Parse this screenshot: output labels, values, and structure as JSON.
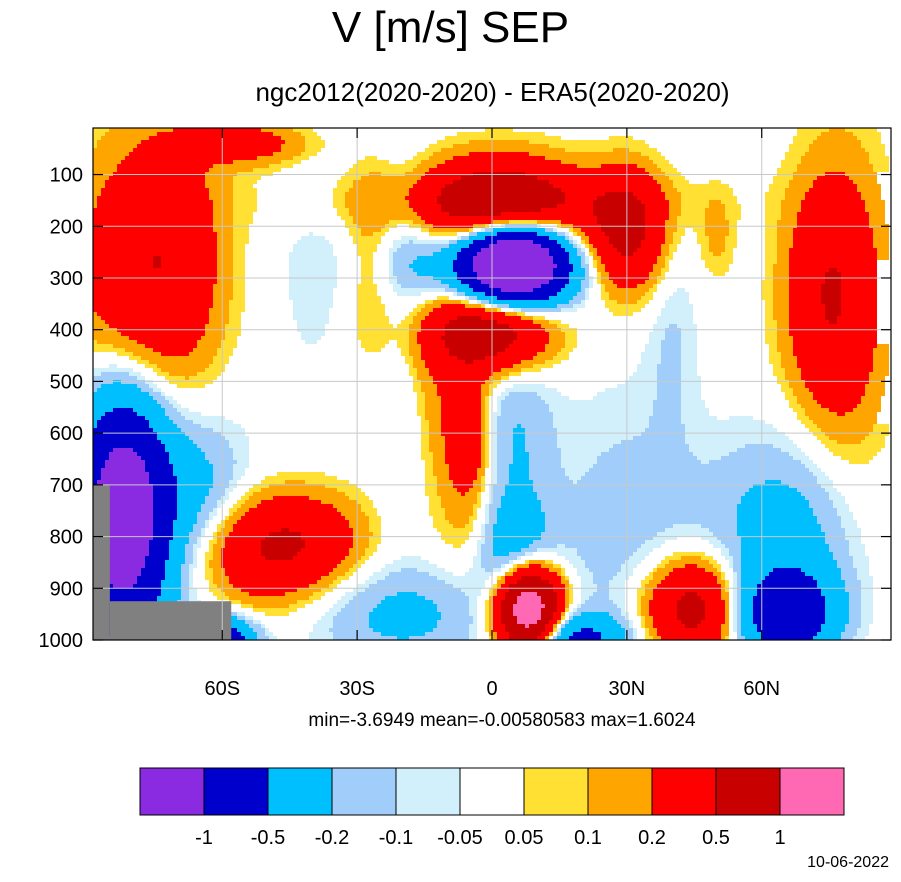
{
  "header": {
    "title": "V [m/s] SEP",
    "subtitle": "ngc2012(2020-2020) - ERA5(2020-2020)"
  },
  "stats": {
    "line": "min=-3.6949   mean=-0.00580583   max=1.6024"
  },
  "footer": {
    "date": "10-06-2022"
  },
  "chart_data": {
    "type": "heatmap",
    "title": "V [m/s] SEP",
    "subtitle": "ngc2012(2020-2020) - ERA5(2020-2020)",
    "xlabel": "",
    "ylabel": "",
    "x_ticks": [
      {
        "value": -60,
        "label": "60S"
      },
      {
        "value": -30,
        "label": "30S"
      },
      {
        "value": 0,
        "label": "0"
      },
      {
        "value": 30,
        "label": "30N"
      },
      {
        "value": 60,
        "label": "60N"
      }
    ],
    "xlim": [
      -88.75,
      88.75
    ],
    "y_ticks": [
      {
        "value": 100,
        "label": "100"
      },
      {
        "value": 200,
        "label": "200"
      },
      {
        "value": 300,
        "label": "300"
      },
      {
        "value": 400,
        "label": "400"
      },
      {
        "value": 500,
        "label": "500"
      },
      {
        "value": 600,
        "label": "600"
      },
      {
        "value": 700,
        "label": "700"
      },
      {
        "value": 800,
        "label": "800"
      },
      {
        "value": 900,
        "label": "900"
      },
      {
        "value": 1000,
        "label": "1000"
      }
    ],
    "ylim": [
      1000,
      10
    ],
    "grid": true,
    "stats": {
      "min": -3.6949,
      "mean": -0.00580583,
      "max": 1.6024
    },
    "colorbar": {
      "colors": [
        "#8a2be2",
        "#0000cd",
        "#00bfff",
        "#a0cdfa",
        "#d2f0fc",
        "#ffffff",
        "#ffe033",
        "#ffa500",
        "#ff0000",
        "#c80000",
        "#ff69b4"
      ],
      "labels": [
        "-1",
        "-0.5",
        "-0.2",
        "-0.1",
        "-0.05",
        "0.05",
        "0.1",
        "0.2",
        "0.5",
        "1"
      ]
    },
    "features": [
      {
        "lat": -80,
        "p": 300,
        "v": 0.35,
        "sl": 10,
        "sp": 180
      },
      {
        "lat": -70,
        "p": 260,
        "v": 0.25,
        "sl": 8,
        "sp": 160
      },
      {
        "lat": -52,
        "p": 830,
        "v": 0.45,
        "sl": 13,
        "sp": 75
      },
      {
        "lat": -42,
        "p": 800,
        "v": 0.2,
        "sl": 10,
        "sp": 60
      },
      {
        "lat": -27,
        "p": 280,
        "v": 0.15,
        "sl": 4,
        "sp": 120
      },
      {
        "lat": -10,
        "p": 500,
        "v": 0.18,
        "sl": 6,
        "sp": 180
      },
      {
        "lat": -5,
        "p": 600,
        "v": 0.35,
        "sl": 3,
        "sp": 70
      },
      {
        "lat": -5,
        "p": 780,
        "v": 0.12,
        "sl": 4,
        "sp": 110
      },
      {
        "lat": 0,
        "p": 400,
        "v": 0.8,
        "sl": 9,
        "sp": 55
      },
      {
        "lat": 2,
        "p": 170,
        "v": 0.9,
        "sl": 12,
        "sp": 65
      },
      {
        "lat": 0,
        "p": 150,
        "v": 0.15,
        "sl": 30,
        "sp": 40
      },
      {
        "lat": 30,
        "p": 210,
        "v": 0.6,
        "sl": 6,
        "sp": 80
      },
      {
        "lat": 8,
        "p": 940,
        "v": 1.6,
        "sl": 5,
        "sp": 60
      },
      {
        "lat": 45,
        "p": 940,
        "v": 0.7,
        "sl": 8,
        "sp": 70
      },
      {
        "lat": 50,
        "p": 220,
        "v": 0.12,
        "sl": 3,
        "sp": 60
      },
      {
        "lat": 75,
        "p": 330,
        "v": 0.45,
        "sl": 7,
        "sp": 160
      },
      {
        "lat": 80,
        "p": 450,
        "v": 0.1,
        "sl": 7,
        "sp": 350
      },
      {
        "lat": -55,
        "p": 40,
        "v": 0.3,
        "sl": 10,
        "sp": 30
      },
      {
        "lat": 5,
        "p": 270,
        "v": -2.0,
        "sl": 8,
        "sp": 55
      },
      {
        "lat": -5,
        "p": 270,
        "v": -0.3,
        "sl": 14,
        "sp": 60
      },
      {
        "lat": -18,
        "p": 200,
        "v": -0.12,
        "sl": 5,
        "sp": 90
      },
      {
        "lat": -40,
        "p": 300,
        "v": -0.07,
        "sl": 6,
        "sp": 160
      },
      {
        "lat": 5,
        "p": 600,
        "v": -0.2,
        "sl": 6,
        "sp": 130
      },
      {
        "lat": 5,
        "p": 850,
        "v": -0.4,
        "sl": 6,
        "sp": 80
      },
      {
        "lat": -20,
        "p": 950,
        "v": -0.25,
        "sl": 15,
        "sp": 70
      },
      {
        "lat": 30,
        "p": 800,
        "v": -0.15,
        "sl": 12,
        "sp": 200
      },
      {
        "lat": 65,
        "p": 950,
        "v": -0.8,
        "sl": 8,
        "sp": 60
      },
      {
        "lat": 65,
        "p": 800,
        "v": -0.3,
        "sl": 12,
        "sp": 130
      },
      {
        "lat": -82,
        "p": 760,
        "v": -1.5,
        "sl": 7,
        "sp": 160
      },
      {
        "lat": -65,
        "p": 750,
        "v": -0.3,
        "sl": 8,
        "sp": 120
      },
      {
        "lat": 18,
        "p": 1000,
        "v": -0.6,
        "sl": 8,
        "sp": 35
      },
      {
        "lat": 40,
        "p": 400,
        "v": -0.1,
        "sl": 4,
        "sp": 150
      },
      {
        "lat": -20,
        "p": 600,
        "v": -0.08,
        "sl": 4,
        "sp": 150
      },
      {
        "lat": -60,
        "p": 1000,
        "v": -0.8,
        "sl": 5,
        "sp": 30
      }
    ],
    "missing": [
      {
        "lat_from": -88.75,
        "lat_to": -85,
        "p_from": 700,
        "p_to": 1000
      },
      {
        "lat_from": -85,
        "lat_to": -58,
        "p_from": 925,
        "p_to": 1000
      }
    ]
  }
}
